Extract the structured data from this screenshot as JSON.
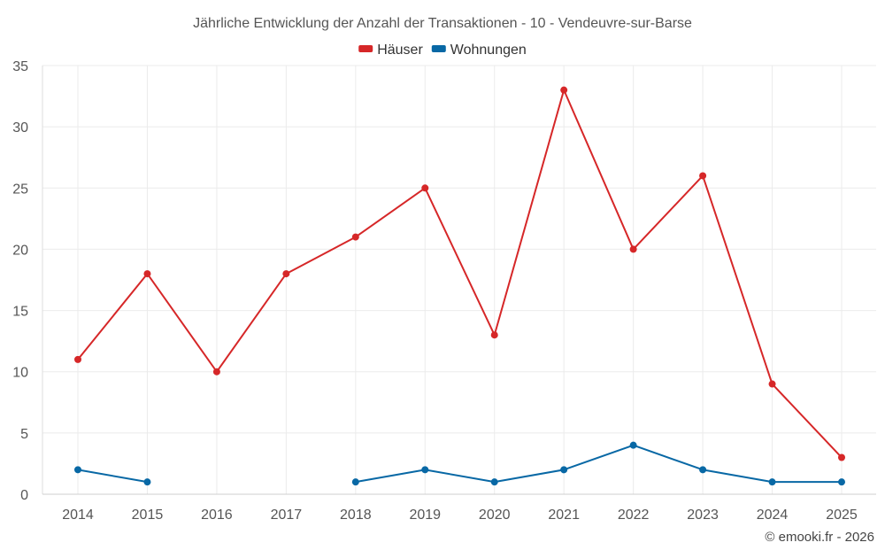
{
  "chart_data": {
    "type": "line",
    "title": "Jährliche Entwicklung der Anzahl der Transaktionen - 10 - Vendeuvre-sur-Barse",
    "categories": [
      "2014",
      "2015",
      "2016",
      "2017",
      "2018",
      "2019",
      "2020",
      "2021",
      "2022",
      "2023",
      "2024",
      "2025"
    ],
    "series": [
      {
        "name": "Häuser",
        "color": "#d62728",
        "values": [
          11,
          18,
          10,
          18,
          21,
          25,
          13,
          33,
          20,
          26,
          9,
          3
        ]
      },
      {
        "name": "Wohnungen",
        "color": "#0868a5",
        "values": [
          2,
          1,
          null,
          null,
          1,
          2,
          1,
          2,
          4,
          2,
          1,
          1
        ]
      }
    ],
    "ylim": [
      0,
      35
    ],
    "yticks": [
      0,
      5,
      10,
      15,
      20,
      25,
      30,
      35
    ],
    "xlabel": "",
    "ylabel": "",
    "grid": true,
    "legend_position": "top-center"
  },
  "credit": "© emooki.fr - 2026"
}
